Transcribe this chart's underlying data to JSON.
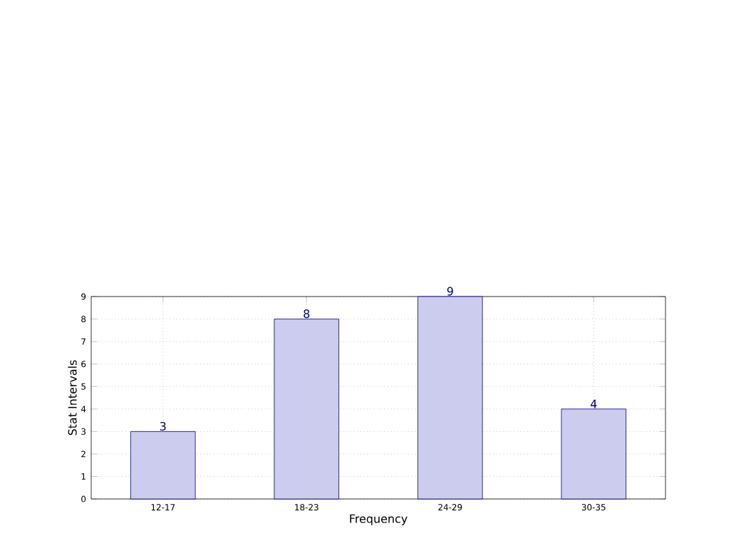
{
  "chart_data": {
    "type": "bar",
    "xlabel": "Frequency",
    "ylabel": "Stat Intervals",
    "categories": [
      "12-17",
      "18-23",
      "24-29",
      "30-35"
    ],
    "values": [
      3,
      8,
      9,
      4
    ],
    "color": "#ccccee",
    "ylim": [
      0,
      9
    ],
    "yticks": [
      0,
      1,
      2,
      3,
      4,
      5,
      6,
      7,
      8,
      9
    ],
    "grid": true,
    "data_labels": true
  }
}
